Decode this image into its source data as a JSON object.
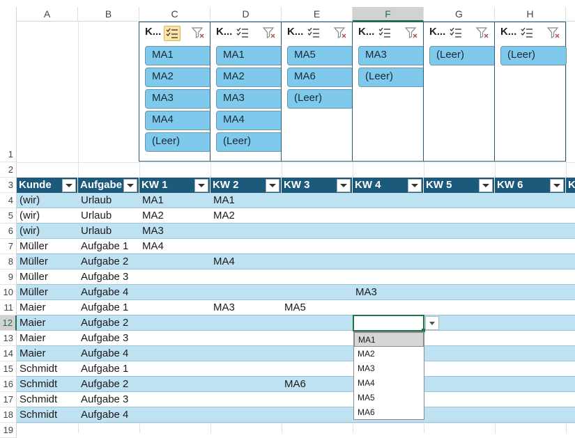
{
  "columns": [
    "A",
    "B",
    "C",
    "D",
    "E",
    "F",
    "G",
    "H"
  ],
  "active_column": "F",
  "rows": [
    "1",
    "2",
    "3",
    "4",
    "5",
    "6",
    "7",
    "8",
    "9",
    "10",
    "11",
    "12",
    "13",
    "14",
    "15",
    "16",
    "17",
    "18",
    "19"
  ],
  "active_row": "12",
  "slicers": [
    {
      "title": "K...",
      "items": [
        "MA1",
        "MA2",
        "MA3",
        "MA4",
        "(Leer)"
      ],
      "multiselect_on": true
    },
    {
      "title": "K...",
      "items": [
        "MA1",
        "MA2",
        "MA3",
        "MA4",
        "(Leer)"
      ],
      "multiselect_on": false
    },
    {
      "title": "K...",
      "items": [
        "MA5",
        "MA6",
        "(Leer)"
      ],
      "multiselect_on": false
    },
    {
      "title": "K...",
      "items": [
        "MA3",
        "(Leer)"
      ],
      "multiselect_on": false
    },
    {
      "title": "K...",
      "items": [
        "(Leer)"
      ],
      "multiselect_on": false
    },
    {
      "title": "K...",
      "items": [
        "(Leer)"
      ],
      "multiselect_on": false
    }
  ],
  "table": {
    "headers": [
      "Kunde",
      "Aufgabe",
      "KW 1",
      "KW 2",
      "KW 3",
      "KW 4",
      "KW 5",
      "KW 6",
      "K"
    ],
    "rows": [
      [
        "(wir)",
        "Urlaub",
        "MA1",
        "MA1",
        "",
        "",
        "",
        ""
      ],
      [
        "(wir)",
        "Urlaub",
        "MA2",
        "MA2",
        "",
        "",
        "",
        ""
      ],
      [
        "(wir)",
        "Urlaub",
        "MA3",
        "",
        "",
        "",
        "",
        ""
      ],
      [
        "Müller",
        "Aufgabe 1",
        "MA4",
        "",
        "",
        "",
        "",
        ""
      ],
      [
        "Müller",
        "Aufgabe 2",
        "",
        "MA4",
        "",
        "",
        "",
        ""
      ],
      [
        "Müller",
        "Aufgabe 3",
        "",
        "",
        "",
        "",
        "",
        ""
      ],
      [
        "Müller",
        "Aufgabe 4",
        "",
        "",
        "",
        "MA3",
        "",
        ""
      ],
      [
        "Maier",
        "Aufgabe 1",
        "",
        "MA3",
        "MA5",
        "",
        "",
        ""
      ],
      [
        "Maier",
        "Aufgabe 2",
        "",
        "",
        "",
        "",
        "",
        ""
      ],
      [
        "Maier",
        "Aufgabe 3",
        "",
        "",
        "",
        "",
        "",
        ""
      ],
      [
        "Maier",
        "Aufgabe 4",
        "",
        "",
        "",
        "",
        "",
        ""
      ],
      [
        "Schmidt",
        "Aufgabe 1",
        "",
        "",
        "",
        "",
        "",
        ""
      ],
      [
        "Schmidt",
        "Aufgabe 2",
        "",
        "",
        "MA6",
        "",
        "",
        ""
      ],
      [
        "Schmidt",
        "Aufgabe 3",
        "",
        "",
        "",
        "",
        "",
        ""
      ],
      [
        "Schmidt",
        "Aufgabe 4",
        "",
        "",
        "",
        "",
        "",
        ""
      ]
    ]
  },
  "dropdown": {
    "options": [
      "MA1",
      "MA2",
      "MA3",
      "MA4",
      "MA5",
      "MA6"
    ],
    "highlighted": "MA1"
  },
  "colors": {
    "header_fill": "#1c5a7c",
    "band_fill": "#bfe2f3",
    "slicer_item": "#7ec9ec",
    "selection": "#217346"
  }
}
